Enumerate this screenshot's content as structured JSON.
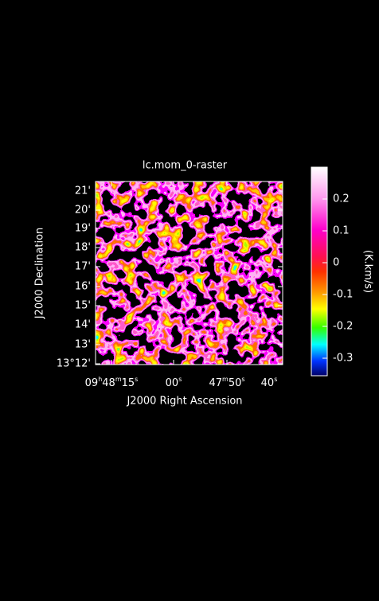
{
  "title": "lc.mom_0-raster",
  "x_axis": {
    "label": "J2000 Right Ascension",
    "ticks": [
      [
        "09",
        "h",
        "48",
        "m",
        "15",
        "s"
      ],
      [
        "00",
        "s"
      ],
      [
        "47",
        "m",
        "50",
        "s"
      ],
      [
        "40",
        "s"
      ]
    ]
  },
  "y_axis": {
    "label": "J2000 Declination",
    "ticks": [
      "13°12'",
      "13'",
      "14'",
      "15'",
      "16'",
      "17'",
      "18'",
      "19'",
      "20'",
      "21'"
    ]
  },
  "colorbar": {
    "label": "(K.km/s)",
    "range": [
      -0.355,
      0.3
    ],
    "ticks": [
      0.2,
      0.1,
      0,
      -0.1,
      -0.2,
      -0.3
    ]
  }
}
